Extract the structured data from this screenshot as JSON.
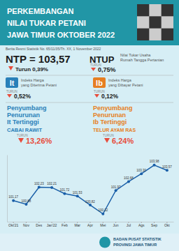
{
  "chart_data": {
    "type": "line",
    "title": [
      "PERKEMBANGAN",
      "NILAI TUKAR PETANI",
      "JAWA TIMUR OKTOBER 2022"
    ],
    "subtitle": "Berita Resmi Statistik No. 65/11/35/Th. XX, 1 November 2022",
    "annotations": [
      "NTP = 103,57",
      "Turun 0,39%",
      "NTUP",
      "Nilai Tukar Usaha",
      "Rumah Tangga Pertanian",
      "TURUN",
      "0,75%",
      "It",
      "Indeks Harga",
      "yang Diterima Petani",
      "0,52%",
      "Ib",
      "yang Dibayar Petani",
      "0,12%",
      "Penyumbang",
      "Penurunan",
      "It Tertinggi",
      "Ib Tertinggi",
      "CABAI RAWIT",
      "13,26%",
      "TELUR AYAM RAS",
      "6,24%",
      "BADAN PUSAT STATISTIK",
      "PROVINSI JAWA TIMUR"
    ],
    "categories": [
      "Okt'21",
      "Nov",
      "Des",
      "Jan'22",
      "Feb",
      "Mar",
      "Apr",
      "Mei",
      "Jun",
      "Jul",
      "Ags",
      "Sep",
      "Okt"
    ],
    "values": [
      101.17,
      100.88,
      102.23,
      102.21,
      101.72,
      101.53,
      100.82,
      100.12,
      101.97,
      102.68,
      103.3,
      103.98,
      103.57
    ],
    "value_labels": [
      "101,17",
      "100,88",
      "102,23",
      "102,21",
      "101,72",
      "101,53",
      "100,82",
      "100,12",
      "101,97",
      "102,68",
      "103,30",
      "103,98",
      "103,57"
    ],
    "color": "#1a5fa8",
    "marker": "circle",
    "data_labels": true,
    "tick_labels": "x",
    "grid": false,
    "ylim": [
      99.5,
      104.8
    ]
  }
}
